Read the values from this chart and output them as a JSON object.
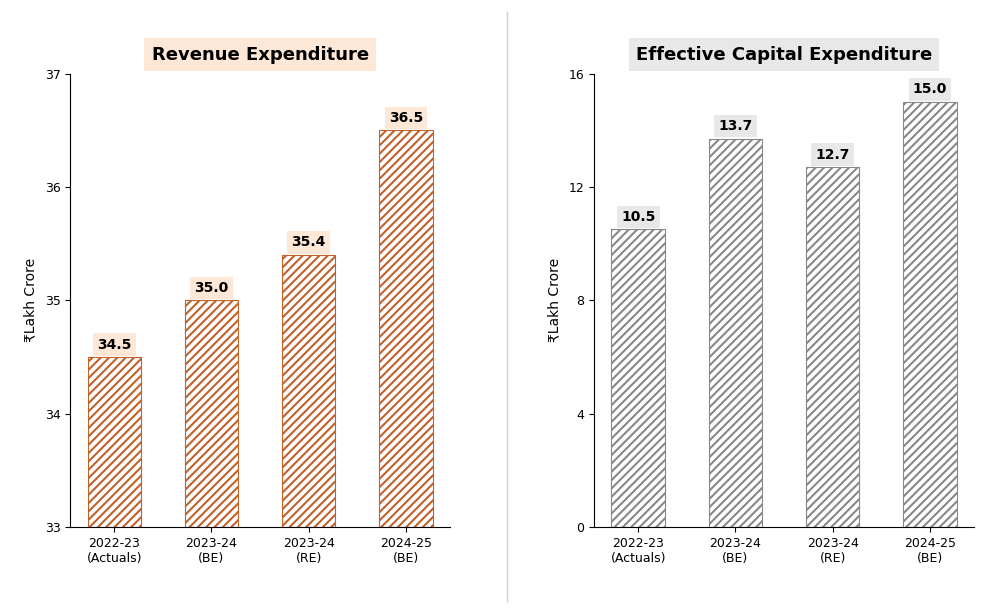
{
  "left_chart": {
    "title": "Revenue Expenditure",
    "title_bg": "#fde8d8",
    "title_border": "#c0392b",
    "categories": [
      "2022-23\n(Actuals)",
      "2023-24\n(BE)",
      "2023-24\n(RE)",
      "2024-25\n(BE)"
    ],
    "values": [
      34.5,
      35.0,
      35.4,
      36.5
    ],
    "bar_facecolor": "#ffffff",
    "bar_edgecolor": "#c0622a",
    "hatch": "////",
    "hatch_color": "#c0622a",
    "ylabel": "₹Lakh Crore",
    "ylim": [
      33,
      37
    ],
    "yticks": [
      33,
      34,
      35,
      36,
      37
    ],
    "label_bg": "#fde8d8",
    "label_border": "none"
  },
  "right_chart": {
    "title": "Effective Capital Expenditure",
    "title_bg": "#e8e8e8",
    "title_border": "#888888",
    "categories": [
      "2022-23\n(Actuals)",
      "2023-24\n(BE)",
      "2023-24\n(RE)",
      "2024-25\n(BE)"
    ],
    "values": [
      10.5,
      13.7,
      12.7,
      15.0
    ],
    "bar_facecolor": "#ffffff",
    "bar_edgecolor": "#888888",
    "hatch": "////",
    "hatch_color": "#888888",
    "ylabel": "₹Lakh Crore",
    "ylim": [
      0,
      16
    ],
    "yticks": [
      0,
      4,
      8,
      12,
      16
    ],
    "label_bg": "#e8e8e8",
    "label_border": "none"
  },
  "fig_bg": "#ffffff",
  "panel_bg": "#ffffff",
  "fontsize_title": 13,
  "fontsize_label": 10,
  "fontsize_tick": 9,
  "fontsize_value": 10
}
